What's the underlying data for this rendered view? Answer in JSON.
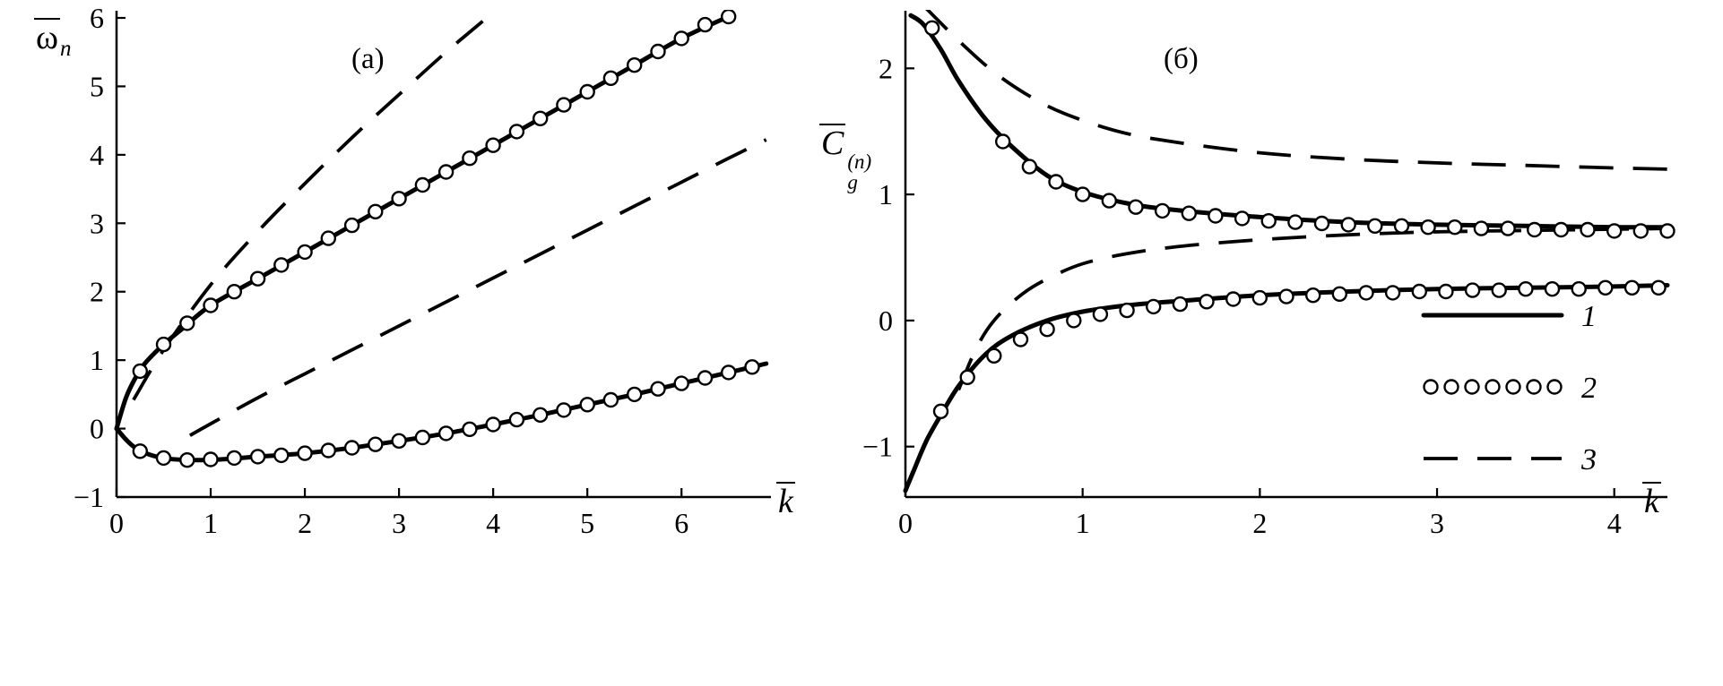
{
  "figure": {
    "background": "#ffffff",
    "ink": "#000000"
  },
  "chart_data": [
    {
      "id": "a",
      "type": "line",
      "panel_label": "(а)",
      "xlabel": {
        "base": "k"
      },
      "ylabel": {
        "base": "ω",
        "sub": "n"
      },
      "xlim": [
        0,
        6.95
      ],
      "ylim": [
        -1,
        6
      ],
      "xticks": [
        0,
        1,
        2,
        3,
        4,
        5,
        6
      ],
      "yticks": [
        -1,
        0,
        1,
        2,
        3,
        4,
        5,
        6
      ],
      "grid": false,
      "series": [
        {
          "name": "a-dashed-upper",
          "legend": "3",
          "style": "dashed",
          "x": [
            0.18,
            0.5,
            1.0,
            1.5,
            2.0,
            2.5,
            3.0,
            3.5,
            4.0,
            4.4
          ],
          "y": [
            0.42,
            1.15,
            2.1,
            2.88,
            3.58,
            4.25,
            4.88,
            5.5,
            6.08,
            6.55
          ]
        },
        {
          "name": "a-dashed-lower",
          "legend": "3",
          "style": "dashed",
          "x": [
            0.78,
            1.0,
            1.5,
            2.0,
            2.5,
            3.0,
            3.5,
            4.0,
            4.5,
            5.0,
            5.5,
            6.0,
            6.5,
            6.9
          ],
          "y": [
            -0.1,
            0.07,
            0.45,
            0.8,
            1.15,
            1.5,
            1.85,
            2.2,
            2.55,
            2.9,
            3.25,
            3.6,
            3.95,
            4.22
          ]
        },
        {
          "name": "a-solid-upper",
          "legend": "1",
          "style": "solid",
          "x": [
            0,
            0.1,
            0.2,
            0.3,
            0.5,
            0.7,
            1.0,
            1.5,
            2.0,
            2.5,
            3.0,
            3.5,
            4.0,
            4.5,
            5.0,
            5.5,
            6.0,
            6.5
          ],
          "y": [
            0,
            0.45,
            0.74,
            0.95,
            1.23,
            1.46,
            1.8,
            2.19,
            2.58,
            2.97,
            3.36,
            3.75,
            4.14,
            4.53,
            4.92,
            5.31,
            5.7,
            6.02
          ]
        },
        {
          "name": "a-solid-lower",
          "legend": "1",
          "style": "solid",
          "x": [
            0,
            0.1,
            0.2,
            0.35,
            0.55,
            0.8,
            1.1,
            1.5,
            2.0,
            2.5,
            3.0,
            3.5,
            4.0,
            4.5,
            5.0,
            5.5,
            6.0,
            6.5,
            6.9
          ],
          "y": [
            0,
            -0.16,
            -0.28,
            -0.38,
            -0.44,
            -0.46,
            -0.45,
            -0.41,
            -0.36,
            -0.28,
            -0.18,
            -0.07,
            0.06,
            0.2,
            0.35,
            0.5,
            0.66,
            0.82,
            0.95
          ]
        },
        {
          "name": "a-markers-upper",
          "legend": "2",
          "style": "markers",
          "x": [
            0.25,
            0.5,
            0.75,
            1.0,
            1.25,
            1.5,
            1.75,
            2.0,
            2.25,
            2.5,
            2.75,
            3.0,
            3.25,
            3.5,
            3.75,
            4.0,
            4.25,
            4.5,
            4.75,
            5.0,
            5.25,
            5.5,
            5.75,
            6.0,
            6.25,
            6.5
          ],
          "y": [
            0.84,
            1.23,
            1.54,
            1.8,
            2.0,
            2.19,
            2.39,
            2.58,
            2.78,
            2.97,
            3.17,
            3.36,
            3.56,
            3.75,
            3.95,
            4.14,
            4.34,
            4.53,
            4.73,
            4.92,
            5.12,
            5.31,
            5.51,
            5.7,
            5.9,
            6.02
          ]
        },
        {
          "name": "a-markers-lower",
          "legend": "2",
          "style": "markers",
          "x": [
            0.25,
            0.5,
            0.75,
            1.0,
            1.25,
            1.5,
            1.75,
            2.0,
            2.25,
            2.5,
            2.75,
            3.0,
            3.25,
            3.5,
            3.75,
            4.0,
            4.25,
            4.5,
            4.75,
            5.0,
            5.25,
            5.5,
            5.75,
            6.0,
            6.25,
            6.5,
            6.75
          ],
          "y": [
            -0.33,
            -0.43,
            -0.46,
            -0.45,
            -0.43,
            -0.41,
            -0.39,
            -0.36,
            -0.32,
            -0.28,
            -0.23,
            -0.18,
            -0.13,
            -0.07,
            -0.01,
            0.06,
            0.13,
            0.2,
            0.27,
            0.35,
            0.42,
            0.5,
            0.58,
            0.66,
            0.74,
            0.82,
            0.9
          ]
        }
      ]
    },
    {
      "id": "b",
      "type": "line",
      "panel_label": "(б)",
      "xlabel": {
        "base": "k"
      },
      "ylabel": {
        "base": "C",
        "sub": "g",
        "sup": "(n)"
      },
      "xlim": [
        0,
        4.3
      ],
      "ylim": [
        -1.4,
        2.4
      ],
      "xticks": [
        0,
        1,
        2,
        3,
        4
      ],
      "yticks": [
        -1,
        0,
        1,
        2
      ],
      "grid": false,
      "series": [
        {
          "name": "b-dashed-upper",
          "legend": "3",
          "style": "dashed",
          "x": [
            0.1,
            0.3,
            0.5,
            0.7,
            0.9,
            1.2,
            1.5,
            2.0,
            2.5,
            3.0,
            3.5,
            4.0,
            4.3
          ],
          "y": [
            2.5,
            2.22,
            1.97,
            1.78,
            1.64,
            1.5,
            1.42,
            1.33,
            1.28,
            1.25,
            1.23,
            1.21,
            1.2
          ]
        },
        {
          "name": "b-dashed-lower",
          "legend": "3",
          "style": "dashed",
          "x": [
            0.3,
            0.4,
            0.5,
            0.65,
            0.8,
            1.0,
            1.25,
            1.5,
            1.8,
            2.1,
            2.5,
            2.9,
            3.3,
            3.8,
            4.3
          ],
          "y": [
            -0.55,
            -0.22,
            0.0,
            0.2,
            0.33,
            0.45,
            0.53,
            0.58,
            0.62,
            0.65,
            0.68,
            0.7,
            0.71,
            0.72,
            0.73
          ]
        },
        {
          "name": "b-solid-upper",
          "legend": "1",
          "style": "solid",
          "x": [
            0.03,
            0.1,
            0.2,
            0.3,
            0.45,
            0.6,
            0.8,
            1.0,
            1.25,
            1.5,
            2.0,
            2.5,
            3.0,
            3.5,
            4.0,
            4.3
          ],
          "y": [
            2.42,
            2.35,
            2.15,
            1.9,
            1.6,
            1.38,
            1.15,
            1.02,
            0.93,
            0.88,
            0.82,
            0.78,
            0.76,
            0.75,
            0.74,
            0.74
          ]
        },
        {
          "name": "b-solid-lower",
          "legend": "1",
          "style": "solid",
          "x": [
            0.0,
            0.05,
            0.12,
            0.2,
            0.3,
            0.45,
            0.6,
            0.8,
            1.0,
            1.25,
            1.5,
            2.0,
            2.5,
            3.0,
            3.5,
            4.0,
            4.3
          ],
          "y": [
            -1.35,
            -1.18,
            -0.95,
            -0.75,
            -0.52,
            -0.27,
            -0.12,
            0.0,
            0.07,
            0.12,
            0.15,
            0.2,
            0.23,
            0.25,
            0.26,
            0.27,
            0.28
          ]
        },
        {
          "name": "b-markers-upper",
          "legend": "2",
          "style": "markers",
          "x": [
            0.15,
            0.55,
            0.7,
            0.85,
            1.0,
            1.15,
            1.3,
            1.45,
            1.6,
            1.75,
            1.9,
            2.05,
            2.2,
            2.35,
            2.5,
            2.65,
            2.8,
            2.95,
            3.1,
            3.25,
            3.4,
            3.55,
            3.7,
            3.85,
            4.0,
            4.15,
            4.3
          ],
          "y": [
            2.32,
            1.42,
            1.22,
            1.1,
            1.0,
            0.95,
            0.9,
            0.87,
            0.85,
            0.83,
            0.81,
            0.79,
            0.78,
            0.77,
            0.76,
            0.75,
            0.75,
            0.74,
            0.74,
            0.73,
            0.73,
            0.72,
            0.72,
            0.72,
            0.71,
            0.71,
            0.71
          ]
        },
        {
          "name": "b-markers-lower",
          "legend": "2",
          "style": "markers",
          "x": [
            0.2,
            0.35,
            0.5,
            0.65,
            0.8,
            0.95,
            1.1,
            1.25,
            1.4,
            1.55,
            1.7,
            1.85,
            2.0,
            2.15,
            2.3,
            2.45,
            2.6,
            2.75,
            2.9,
            3.05,
            3.2,
            3.35,
            3.5,
            3.65,
            3.8,
            3.95,
            4.1,
            4.25
          ],
          "y": [
            -0.72,
            -0.45,
            -0.28,
            -0.15,
            -0.07,
            0.0,
            0.05,
            0.08,
            0.11,
            0.13,
            0.15,
            0.17,
            0.18,
            0.19,
            0.2,
            0.21,
            0.22,
            0.22,
            0.23,
            0.23,
            0.24,
            0.24,
            0.25,
            0.25,
            0.25,
            0.26,
            0.26,
            0.26
          ]
        }
      ],
      "legend": {
        "position": "lower-right",
        "items": [
          {
            "label": "1",
            "style": "solid"
          },
          {
            "label": "2",
            "style": "markers"
          },
          {
            "label": "3",
            "style": "dashed"
          }
        ]
      }
    }
  ]
}
